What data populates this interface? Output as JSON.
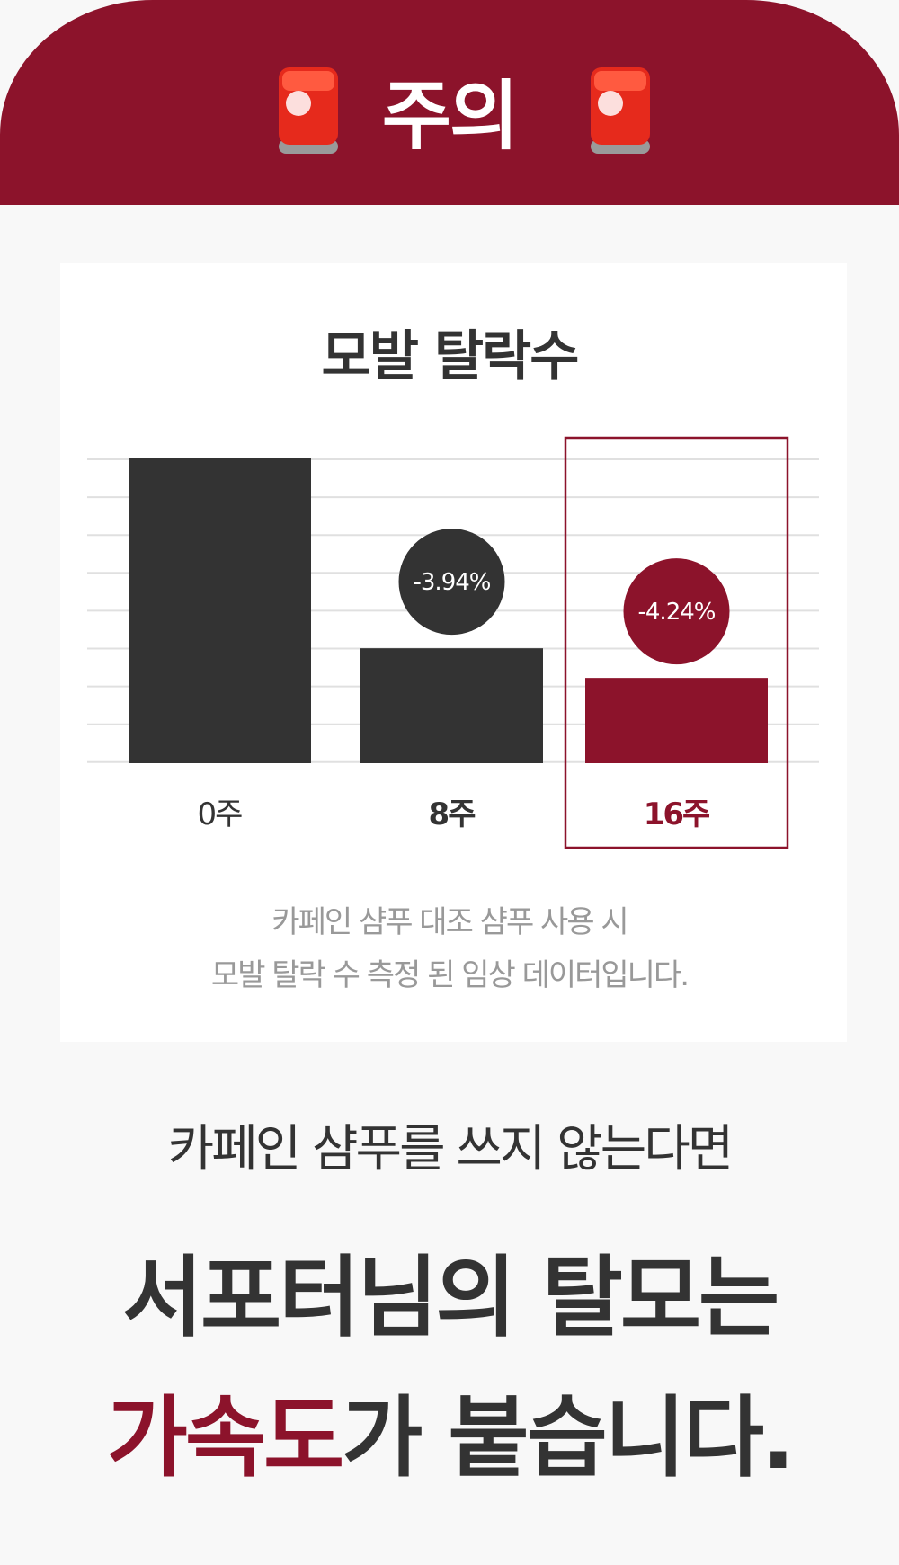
{
  "header": {
    "title": "주의",
    "icon": "police-siren-icon"
  },
  "colors": {
    "accent": "#8c132b",
    "dark": "#333333",
    "caption": "#999999",
    "grid": "#e0e0e0"
  },
  "chart_data": {
    "type": "bar",
    "title": "모발 탈락수",
    "categories": [
      "0주",
      "8주",
      "16주"
    ],
    "values": [
      100,
      37.6,
      27.9
    ],
    "ylim": [
      0,
      100
    ],
    "grid": true,
    "highlighted_category": "16주",
    "data_labels": [
      "",
      "-3.94%",
      "-4.24%"
    ]
  },
  "caption": {
    "line1": "카페인 샴푸 대조 샴푸 사용 시",
    "line2": "모발 탈락 수 측정 된 임상 데이터입니다."
  },
  "message": {
    "line1": "카페인 샴푸를 쓰지 않는다면",
    "line2": "서포터님의 탈모는",
    "line3_accent": "가속도",
    "line3_rest": "가 붙습니다."
  }
}
